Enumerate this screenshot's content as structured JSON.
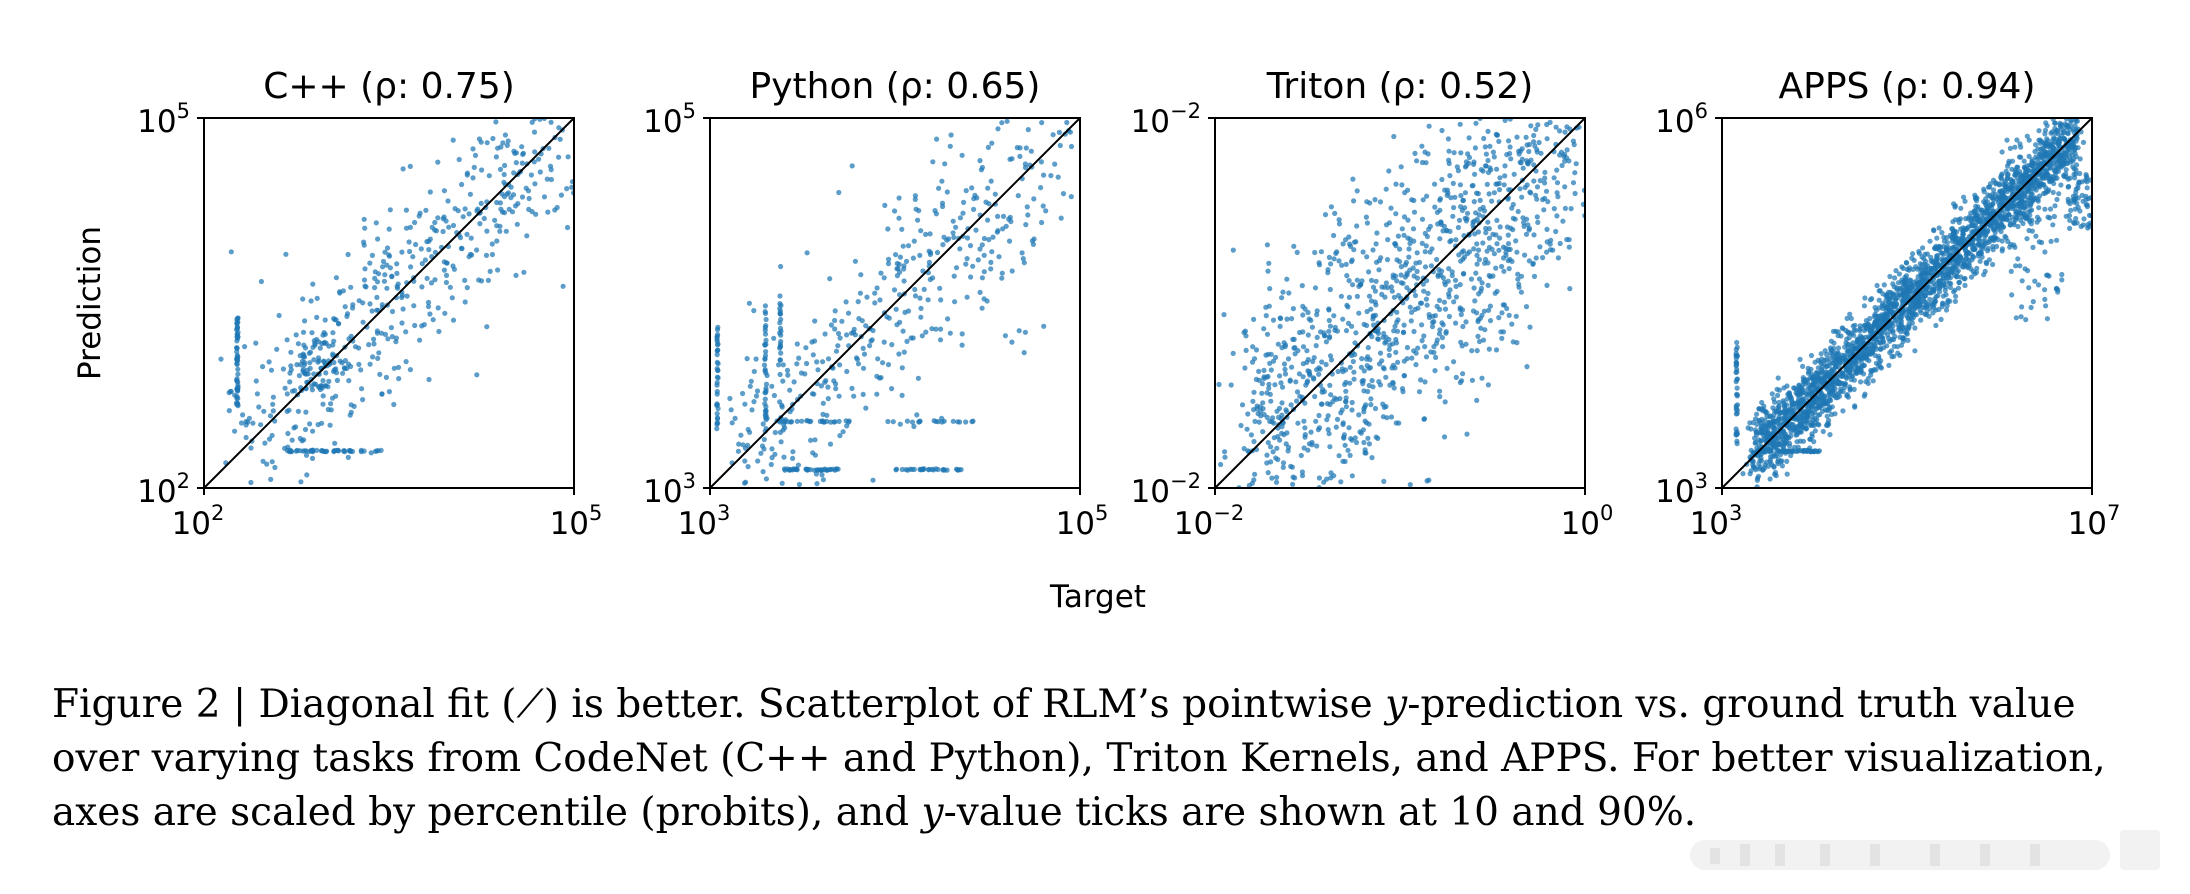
{
  "chart_data": [
    {
      "type": "scatter",
      "title": "C++ (ρ: 0.75)",
      "xlabel": "",
      "ylabel": "Prediction",
      "x_ticks": [
        {
          "base": "10",
          "exp": "2"
        },
        {
          "base": "10",
          "exp": "5"
        }
      ],
      "y_ticks": [
        {
          "base": "10",
          "exp": "2"
        },
        {
          "base": "10",
          "exp": "5"
        }
      ],
      "xlim": [
        0,
        1
      ],
      "ylim": [
        0,
        1
      ],
      "diagonal": true,
      "point_color": "#1f77b4",
      "seed": 11,
      "n_points": 520,
      "spread": 0.14,
      "clusters": [
        {
          "x": [
            0.09,
            0.09
          ],
          "y": [
            0.22,
            0.46
          ],
          "n": 55,
          "kind": "vline"
        },
        {
          "x": [
            0.22,
            0.48
          ],
          "y": [
            0.1,
            0.1
          ],
          "n": 45,
          "kind": "hline"
        },
        {
          "x": [
            0.26,
            0.36
          ],
          "y": [
            0.26,
            0.4
          ],
          "n": 60,
          "kind": "blob"
        }
      ]
    },
    {
      "type": "scatter",
      "title": "Python (ρ: 0.65)",
      "xlabel": "",
      "ylabel": "",
      "x_ticks": [
        {
          "base": "10",
          "exp": "3"
        },
        {
          "base": "10",
          "exp": "5"
        }
      ],
      "y_ticks": [
        {
          "base": "10",
          "exp": "3"
        },
        {
          "base": "10",
          "exp": "5"
        }
      ],
      "xlim": [
        0,
        1
      ],
      "ylim": [
        0,
        1
      ],
      "diagonal": true,
      "point_color": "#1f77b4",
      "seed": 23,
      "n_points": 460,
      "spread": 0.16,
      "clusters": [
        {
          "x": [
            0.02,
            0.02
          ],
          "y": [
            0.15,
            0.45
          ],
          "n": 35,
          "kind": "vline"
        },
        {
          "x": [
            0.15,
            0.15
          ],
          "y": [
            0.15,
            0.5
          ],
          "n": 35,
          "kind": "vline"
        },
        {
          "x": [
            0.19,
            0.19
          ],
          "y": [
            0.15,
            0.52
          ],
          "n": 28,
          "kind": "vline"
        },
        {
          "x": [
            0.2,
            0.38
          ],
          "y": [
            0.05,
            0.05
          ],
          "n": 40,
          "kind": "hline"
        },
        {
          "x": [
            0.5,
            0.68
          ],
          "y": [
            0.05,
            0.05
          ],
          "n": 30,
          "kind": "hline"
        },
        {
          "x": [
            0.2,
            0.38
          ],
          "y": [
            0.18,
            0.18
          ],
          "n": 22,
          "kind": "hline"
        },
        {
          "x": [
            0.48,
            0.72
          ],
          "y": [
            0.18,
            0.22
          ],
          "n": 18,
          "kind": "hline"
        }
      ]
    },
    {
      "type": "scatter",
      "title": "Triton (ρ: 0.52)",
      "xlabel": "",
      "ylabel": "",
      "x_ticks": [
        {
          "base": "10",
          "exp": "−2"
        },
        {
          "base": "10",
          "exp": "0"
        }
      ],
      "y_ticks": [
        {
          "base": "10",
          "exp": "−2"
        },
        {
          "base": "10",
          "exp": "−2"
        }
      ],
      "xlim": [
        0,
        1
      ],
      "ylim": [
        0,
        1
      ],
      "diagonal": true,
      "point_color": "#1f77b4",
      "seed": 37,
      "n_points": 1250,
      "spread": 0.2,
      "clusters": []
    },
    {
      "type": "scatter",
      "title": "APPS (ρ: 0.94)",
      "xlabel": "",
      "ylabel": "",
      "x_ticks": [
        {
          "base": "10",
          "exp": "3"
        },
        {
          "base": "10",
          "exp": "7"
        }
      ],
      "y_ticks": [
        {
          "base": "10",
          "exp": "3"
        },
        {
          "base": "10",
          "exp": "6"
        }
      ],
      "xlim": [
        0,
        1
      ],
      "ylim": [
        0,
        1
      ],
      "diagonal": true,
      "point_color": "#1f77b4",
      "seed": 53,
      "n_points": 2600,
      "spread": 0.05,
      "clusters": [
        {
          "x": [
            0.04,
            0.04
          ],
          "y": [
            0.08,
            0.4
          ],
          "n": 40,
          "kind": "vline"
        },
        {
          "x": [
            0.09,
            0.27
          ],
          "y": [
            0.1,
            0.1
          ],
          "n": 60,
          "kind": "hline"
        },
        {
          "x": [
            0.77,
            0.92
          ],
          "y": [
            0.45,
            0.95
          ],
          "n": 90,
          "kind": "blob"
        },
        {
          "x": [
            0.93,
            1.0
          ],
          "y": [
            0.7,
            0.85
          ],
          "n": 60,
          "kind": "blob"
        }
      ]
    }
  ],
  "figure": {
    "shared_xlabel": "Target"
  },
  "caption": {
    "label": "Figure 2",
    "separator": "|",
    "segments": [
      " Diagonal fit (",
      "⟋",
      ") is better. Scatterplot of RLM’s pointwise ",
      "y",
      "-prediction vs. ground truth value over varying tasks from CodeNet (C++ and Python), Triton Kernels, and APPS. For better visualization, axes are scaled by percentile (probits), and ",
      "y",
      "-value ticks are shown at 10 and 90%."
    ]
  }
}
